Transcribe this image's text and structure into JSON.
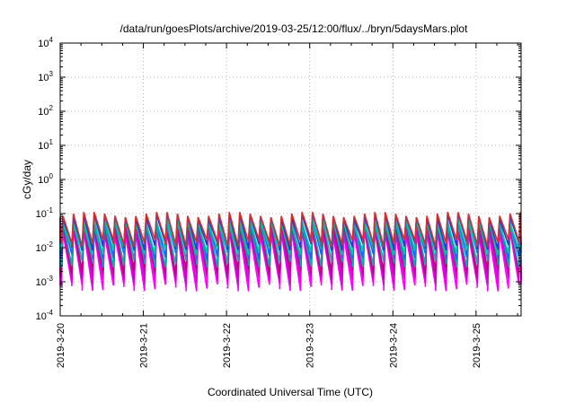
{
  "chart_data": {
    "type": "line",
    "title": "/data/run/goesPlots/archive/2019-03-25/12:00/flux/../bryn/5daysMars.plot",
    "xlabel": "Coordinated Universal Time (UTC)",
    "ylabel": "cGy/day",
    "yscale": "log",
    "ylim": [
      0.0001,
      10000
    ],
    "xlim": [
      "2019-03-20T00:00",
      "2019-03-25T13:00"
    ],
    "x_ticks": [
      "2019-3-20",
      "2019-3-21",
      "2019-3-22",
      "2019-3-23",
      "2019-3-24",
      "2019-3-25"
    ],
    "y_ticks": [
      {
        "base": "10",
        "exp": "-4"
      },
      {
        "base": "10",
        "exp": "-3"
      },
      {
        "base": "10",
        "exp": "-2"
      },
      {
        "base": "10",
        "exp": "-1"
      },
      {
        "base": "10",
        "exp": "0"
      },
      {
        "base": "10",
        "exp": "1"
      },
      {
        "base": "10",
        "exp": "2"
      },
      {
        "base": "10",
        "exp": "3"
      },
      {
        "base": "10",
        "exp": "4"
      }
    ],
    "grid": true,
    "legend": "none",
    "pattern": {
      "period_hours": 3,
      "peak_offset_hours": 0.8,
      "description_values": "sawtooth pulses"
    },
    "series": [
      {
        "color": "#ff00ff",
        "peak": 0.028,
        "trough": 0.0007
      },
      {
        "color": "#e000e0",
        "peak": 0.035,
        "trough": 0.0011
      },
      {
        "color": "#c800c8",
        "peak": 0.045,
        "trough": 0.0016
      },
      {
        "color": "#b01060",
        "peak": 0.05,
        "trough": 0.0022
      },
      {
        "color": "#00b0b0",
        "peak": 0.055,
        "trough": 0.0035
      },
      {
        "color": "#2060ff",
        "peak": 0.07,
        "trough": 0.006
      },
      {
        "color": "#00c8a0",
        "peak": 0.06,
        "trough": 0.008
      },
      {
        "color": "#3030d0",
        "peak": 0.085,
        "trough": 0.011
      },
      {
        "color": "#d03030",
        "peak": 0.095,
        "trough": 0.014
      }
    ]
  }
}
